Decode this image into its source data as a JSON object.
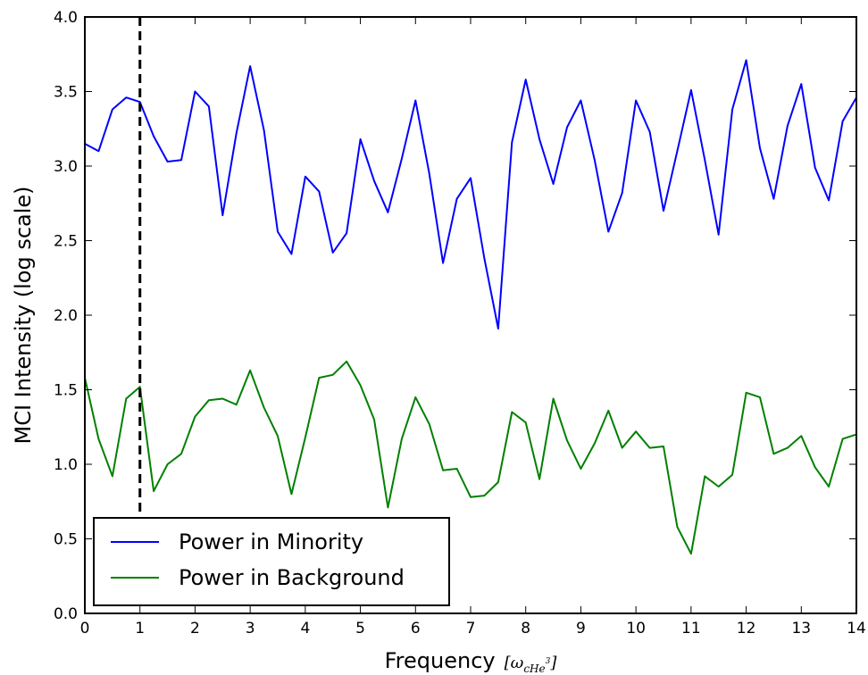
{
  "chart_data": {
    "type": "line",
    "title": "",
    "xlabel": "Frequency",
    "xlabel_unit": "[ω",
    "xlabel_unit_sub": "cHe",
    "xlabel_unit_sup": "3",
    "xlabel_unit_close": "]",
    "ylabel": "MCI Intensity (log scale)",
    "xlim": [
      0,
      14
    ],
    "ylim": [
      0,
      4
    ],
    "xticks": [
      "0",
      "1",
      "2",
      "3",
      "4",
      "5",
      "6",
      "7",
      "8",
      "9",
      "10",
      "11",
      "12",
      "13",
      "14"
    ],
    "yticks": [
      "0.0",
      "0.5",
      "1.0",
      "1.5",
      "2.0",
      "2.5",
      "3.0",
      "3.5",
      "4.0"
    ],
    "grid": false,
    "legend_position": "lower-left",
    "vline": {
      "x": 1,
      "style": "dashed",
      "color": "#000000",
      "y_top": 4.0,
      "y_bottom": 0.65
    },
    "x": [
      0.0,
      0.25,
      0.5,
      0.75,
      1.0,
      1.25,
      1.5,
      1.75,
      2.0,
      2.25,
      2.5,
      2.75,
      3.0,
      3.25,
      3.5,
      3.75,
      4.0,
      4.25,
      4.5,
      4.75,
      5.0,
      5.25,
      5.5,
      5.75,
      6.0,
      6.25,
      6.5,
      6.75,
      7.0,
      7.25,
      7.5,
      7.75,
      8.0,
      8.25,
      8.5,
      8.75,
      9.0,
      9.25,
      9.5,
      9.75,
      10.0,
      10.25,
      10.5,
      10.75,
      11.0,
      11.25,
      11.5,
      11.75,
      12.0,
      12.25,
      12.5,
      12.75,
      13.0,
      13.25,
      13.5,
      13.75,
      14.0
    ],
    "series": [
      {
        "name": "Power in Minority",
        "color": "#0000ff",
        "values": [
          3.15,
          3.1,
          3.38,
          3.46,
          3.43,
          3.2,
          3.03,
          3.04,
          3.5,
          3.4,
          2.67,
          3.22,
          3.67,
          3.24,
          2.56,
          2.41,
          2.93,
          2.83,
          2.42,
          2.55,
          3.18,
          2.9,
          2.69,
          3.05,
          3.44,
          2.95,
          2.35,
          2.78,
          2.92,
          2.38,
          1.91,
          3.16,
          3.58,
          3.18,
          2.88,
          3.26,
          3.44,
          3.04,
          2.56,
          2.82,
          3.44,
          3.23,
          2.7,
          3.1,
          3.51,
          3.04,
          2.54,
          3.38,
          3.71,
          3.12,
          2.78,
          3.27,
          3.55,
          2.99,
          2.77,
          3.3,
          3.46
        ]
      },
      {
        "name": "Power in Background",
        "color": "#008000",
        "values": [
          1.58,
          1.17,
          0.92,
          1.44,
          1.52,
          0.82,
          1.0,
          1.07,
          1.32,
          1.43,
          1.44,
          1.4,
          1.63,
          1.38,
          1.19,
          0.8,
          1.18,
          1.58,
          1.6,
          1.69,
          1.53,
          1.3,
          0.71,
          1.17,
          1.45,
          1.27,
          0.96,
          0.97,
          0.78,
          0.79,
          0.88,
          1.35,
          1.28,
          0.9,
          1.44,
          1.16,
          0.97,
          1.14,
          1.36,
          1.11,
          1.22,
          1.11,
          1.12,
          0.58,
          0.4,
          0.92,
          0.85,
          0.93,
          1.48,
          1.45,
          1.07,
          1.11,
          1.19,
          0.98,
          0.85,
          1.17,
          1.2
        ]
      }
    ]
  }
}
